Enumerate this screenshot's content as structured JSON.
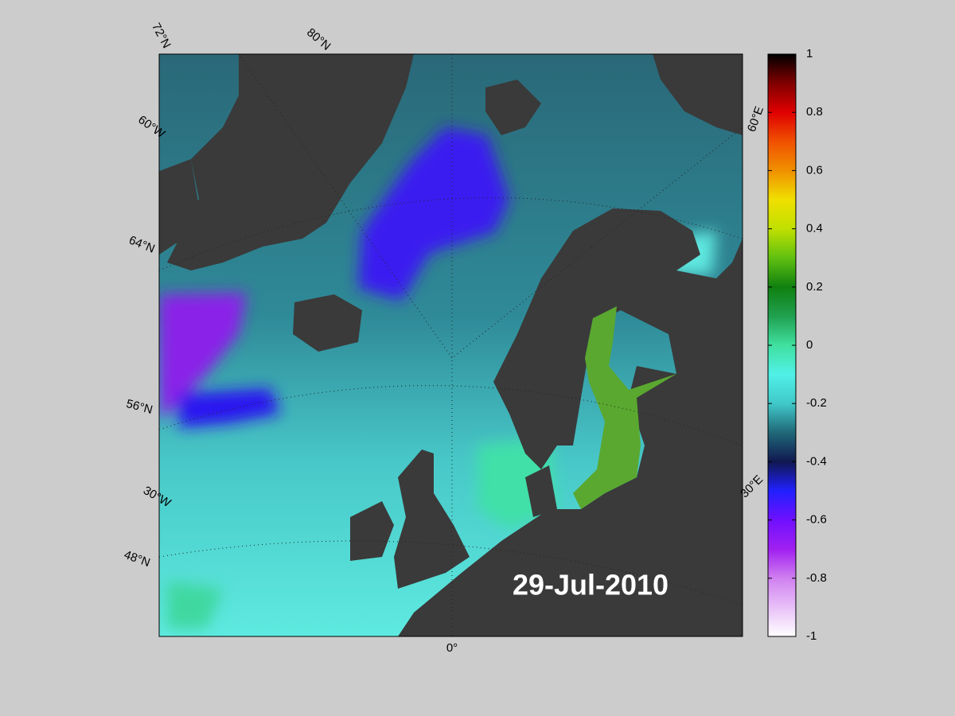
{
  "map": {
    "date_label": "29-Jul-2010",
    "grid_labels": [
      "72°N",
      "80°N",
      "60°W",
      "64°N",
      "56°N",
      "30°W",
      "48°N",
      "0°",
      "60°E",
      "30°E"
    ],
    "colorbar": {
      "lim": [
        -1,
        1
      ],
      "ticks": [
        1,
        0.8,
        0.6,
        0.4,
        0.2,
        0,
        -0.2,
        -0.4,
        -0.6,
        -0.8,
        -1
      ],
      "colors": [
        "#ffffff",
        "#e8c0f8",
        "#d080f0",
        "#a020f0",
        "#7010ff",
        "#2020ff",
        "#101850",
        "#206878",
        "#40c8c8",
        "#50f0e8",
        "#40e0a0",
        "#20a050",
        "#108010",
        "#60c010",
        "#c0e000",
        "#f0e000",
        "#f09000",
        "#f05000",
        "#e00000",
        "#800000",
        "#000000"
      ]
    }
  }
}
